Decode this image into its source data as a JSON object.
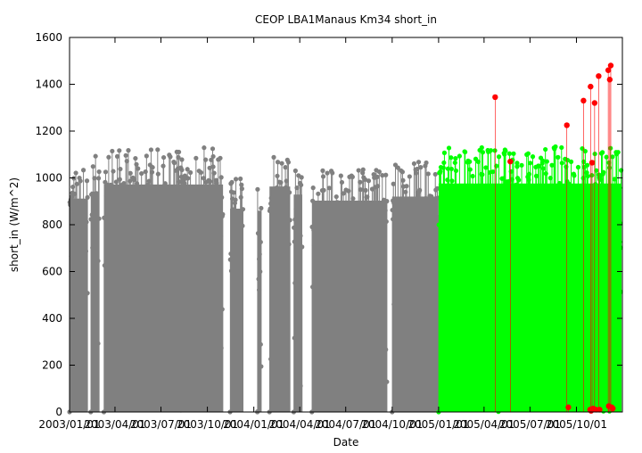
{
  "chart_data": {
    "type": "scatter",
    "title": "CEOP LBA1Manaus Km34  short_in",
    "xlabel": "Date",
    "ylabel": "short_in (W/m^2)",
    "ylim": [
      0,
      1600
    ],
    "yticks": [
      0,
      200,
      400,
      600,
      800,
      1000,
      1200,
      1400,
      1600
    ],
    "xlim": [
      "2003-01-01",
      "2005-12-31"
    ],
    "xticks": [
      {
        "date": "2003-01-01",
        "label": "2003/01/01"
      },
      {
        "date": "2003-04-01",
        "label": "2003/04/01"
      },
      {
        "date": "2003-07-01",
        "label": "2003/07/01"
      },
      {
        "date": "2003-10-01",
        "label": "2003/10/01"
      },
      {
        "date": "2004-01-01",
        "label": "2004/01/01"
      },
      {
        "date": "2004-04-01",
        "label": "2004/04/01"
      },
      {
        "date": "2004-07-01",
        "label": "2004/07/01"
      },
      {
        "date": "2004-10-01",
        "label": "2004/10/01"
      },
      {
        "date": "2005-01-01",
        "label": "2005/01/01"
      },
      {
        "date": "2005-04-01",
        "label": "2005/04/01"
      },
      {
        "date": "2005-07-01",
        "label": "2005/07/01"
      },
      {
        "date": "2005-10-01",
        "label": "2005/10/01"
      }
    ],
    "grid": false,
    "legend": "none",
    "series": [
      {
        "color": "#808080",
        "blocks": [
          {
            "start": "2003-01-01",
            "end": "2003-02-05",
            "max": 1060
          },
          {
            "start": "2003-02-12",
            "end": "2003-02-28",
            "max": 1095
          },
          {
            "start": "2003-03-10",
            "end": "2003-10-31",
            "max": 1130
          },
          {
            "start": "2003-11-15",
            "end": "2003-12-10",
            "max": 1010
          },
          {
            "start": "2004-01-08",
            "end": "2004-01-15",
            "max": 1000
          },
          {
            "start": "2004-02-01",
            "end": "2004-03-12",
            "max": 1120
          },
          {
            "start": "2004-03-20",
            "end": "2004-04-05",
            "max": 1080
          },
          {
            "start": "2004-04-25",
            "end": "2004-09-20",
            "max": 1050
          },
          {
            "start": "2004-10-01",
            "end": "2004-12-31",
            "max": 1070
          }
        ]
      },
      {
        "color": "#00ff00",
        "blocks": [
          {
            "start": "2005-01-01",
            "end": "2005-12-28",
            "max": 1135
          }
        ]
      },
      {
        "color": "#ff0000",
        "points": [
          {
            "date": "2005-04-23",
            "value": 1345
          },
          {
            "date": "2005-05-23",
            "value": 1070
          },
          {
            "date": "2005-09-12",
            "value": 1225
          },
          {
            "date": "2005-09-15",
            "value": 20
          },
          {
            "date": "2005-10-15",
            "value": 1330
          },
          {
            "date": "2005-10-28",
            "value": 10
          },
          {
            "date": "2005-10-29",
            "value": 1390
          },
          {
            "date": "2005-10-30",
            "value": 5
          },
          {
            "date": "2005-11-01",
            "value": 1065
          },
          {
            "date": "2005-11-03",
            "value": 15
          },
          {
            "date": "2005-11-06",
            "value": 1320
          },
          {
            "date": "2005-11-09",
            "value": 10
          },
          {
            "date": "2005-11-14",
            "value": 1435
          },
          {
            "date": "2005-11-16",
            "value": 10
          },
          {
            "date": "2005-12-03",
            "value": 1460
          },
          {
            "date": "2005-12-04",
            "value": 25
          },
          {
            "date": "2005-12-06",
            "value": 1420
          },
          {
            "date": "2005-12-08",
            "value": 1480
          },
          {
            "date": "2005-12-10",
            "value": 20
          },
          {
            "date": "2005-12-12",
            "value": 15
          }
        ]
      }
    ]
  }
}
